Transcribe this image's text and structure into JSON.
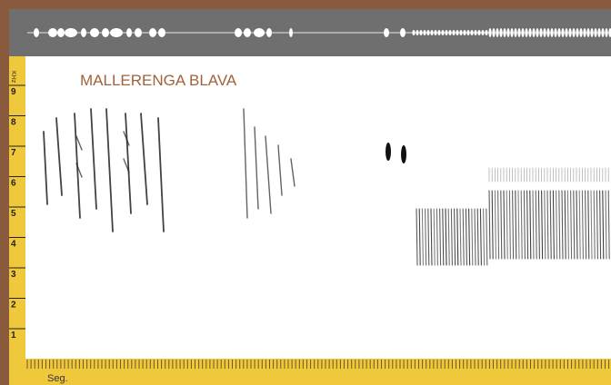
{
  "title": "MALLERENGA BLAVA",
  "y_axis": {
    "unit": "KHz",
    "labels": [
      "9",
      "8",
      "7",
      "6",
      "5",
      "4",
      "3",
      "2",
      "1"
    ]
  },
  "x_axis": {
    "unit": "Seg."
  }
}
